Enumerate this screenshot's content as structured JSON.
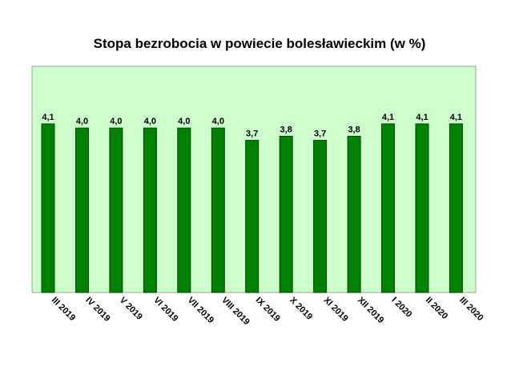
{
  "chart_data": {
    "type": "bar",
    "title": "Stopa bezrobocia w powiecie bolesławieckim (w %)",
    "xlabel": "",
    "ylabel": "",
    "categories": [
      "III 2019",
      "IV 2019",
      "V 2019",
      "VI 2019",
      "VII 2019",
      "VIII 2019",
      "IX 2019",
      "X 2019",
      "XI 2019",
      "XII 2019",
      "I 2020",
      "II 2020",
      "III 2020"
    ],
    "values": [
      4.1,
      4.0,
      4.0,
      4.0,
      4.0,
      4.0,
      3.7,
      3.8,
      3.7,
      3.8,
      4.1,
      4.1,
      4.1
    ],
    "data_labels": [
      "4,1",
      "4,0",
      "4,0",
      "4,0",
      "4,0",
      "4,0",
      "3,7",
      "3,8",
      "3,7",
      "3,8",
      "4,1",
      "4,1",
      "4,1"
    ],
    "ylim": [
      0,
      5.5
    ],
    "grid": false,
    "legend": "none",
    "colors": {
      "bar_fill": "#008000",
      "bar_stroke": "#004400",
      "plot_background": "#ccffcc",
      "plot_border": "#9aa09a"
    }
  }
}
